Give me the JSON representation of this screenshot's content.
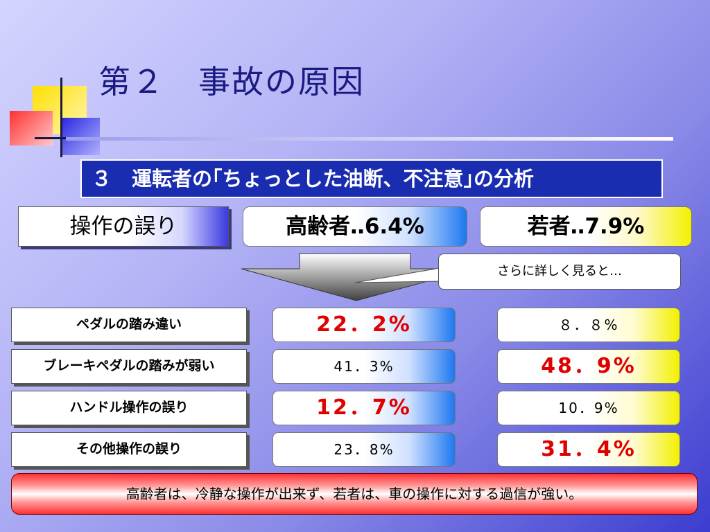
{
  "slide": {
    "title": "第２　事故の原因",
    "subtitle": "３　運転者の｢ちょっとした油断、不注意｣の分析",
    "category": "操作の誤り",
    "header_old": "高齢者‥6.4%",
    "header_young": "若者‥7.9%",
    "callout": "さらに詳しく見ると…",
    "rows": [
      {
        "label": "ペダルの踏み違い",
        "old": "22．2%",
        "young": "８．８%",
        "highlight": "old"
      },
      {
        "label": "ブレーキペダルの踏みが弱い",
        "old": "41．3%",
        "young": "48．9%",
        "highlight": "young"
      },
      {
        "label": "ハンドル操作の誤り",
        "old": "12．7%",
        "young": "10．9%",
        "highlight": "old"
      },
      {
        "label": "その他操作の誤り",
        "old": "23．8%",
        "young": "31．4%",
        "highlight": "young"
      }
    ],
    "conclusion": "高齢者は、冷静な操作が出来ず、若者は、車の操作に対する過信が強い。"
  },
  "colors": {
    "title": "#1a1a80",
    "subtitle_bg": "#1a2cb0",
    "highlight_text": "#e00000",
    "old_accent": "#1e78f0",
    "young_accent": "#f2f000",
    "conclusion_accent": "#ff3030"
  }
}
